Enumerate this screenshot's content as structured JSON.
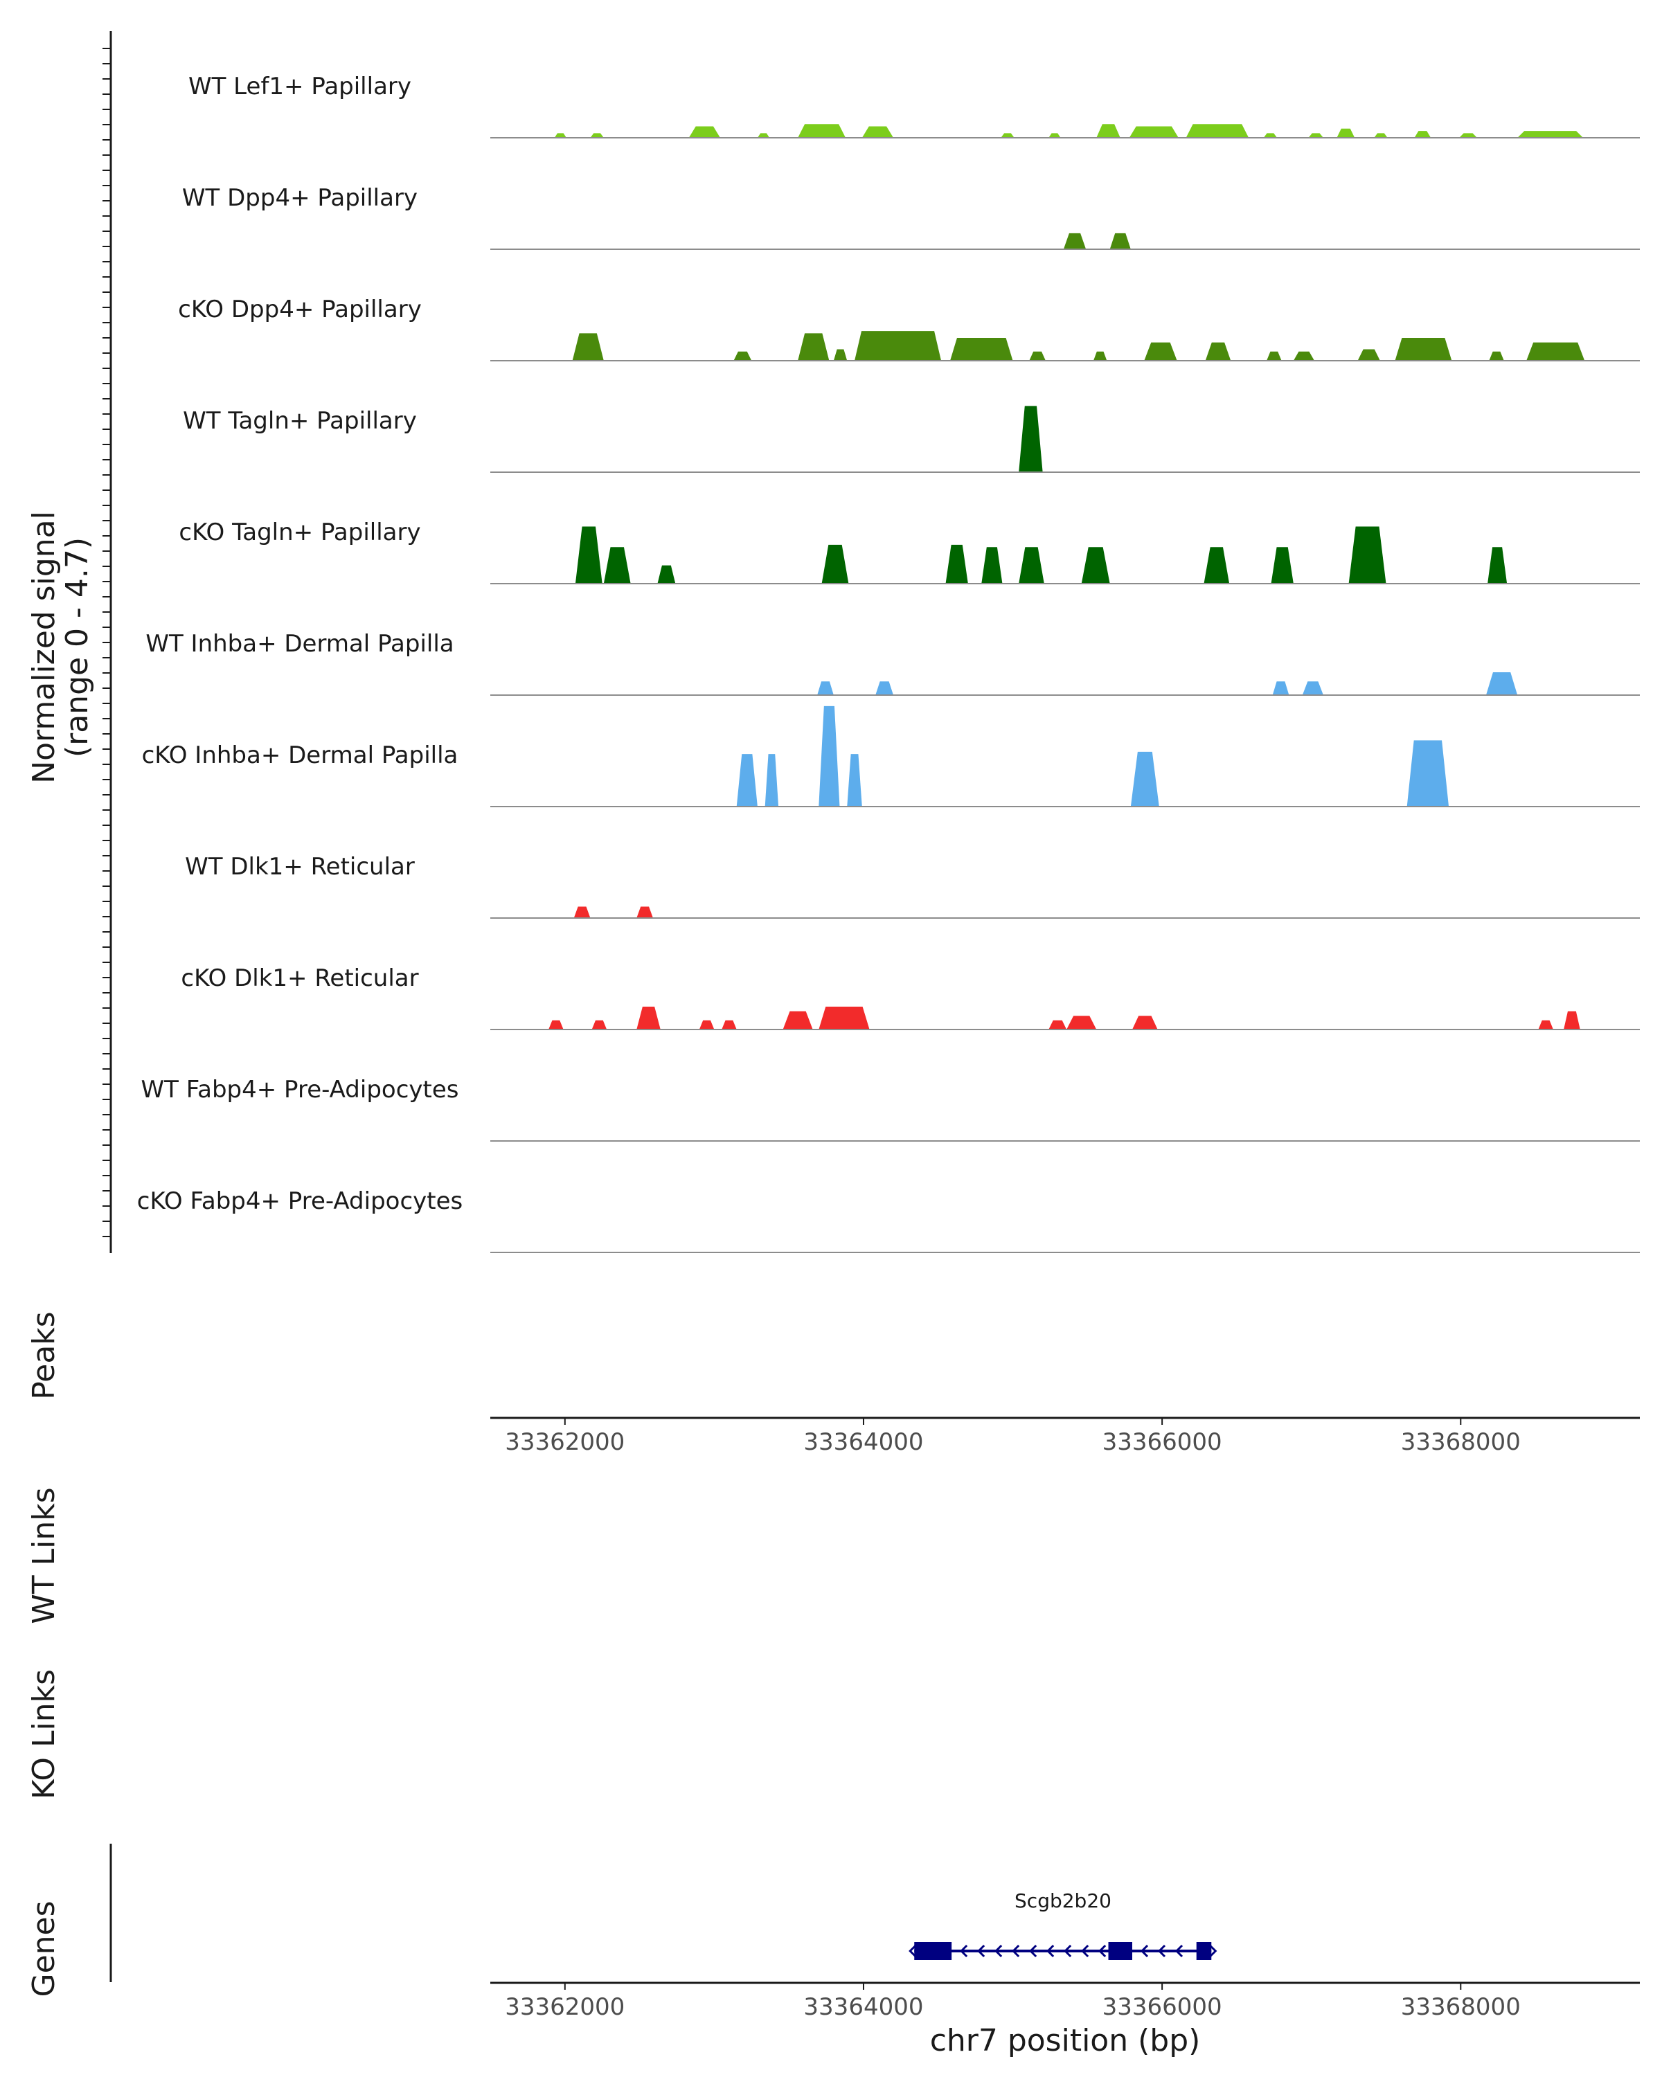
{
  "chart_data": {
    "type": "area",
    "coverage": {
      "ylabel_line1": "Normalized signal",
      "ylabel_line2": "(range 0 - 4.7)",
      "ylim": [
        0,
        4.7
      ],
      "tracks": [
        {
          "name": "WT Lef1+ Papillary",
          "color": "#7CCD1C",
          "peaks": [
            {
              "start": 33361930,
              "end": 33362010,
              "h": 0.2
            },
            {
              "start": 33362170,
              "end": 33362260,
              "h": 0.2
            },
            {
              "start": 33362830,
              "end": 33363040,
              "h": 0.5
            },
            {
              "start": 33363290,
              "end": 33363370,
              "h": 0.2
            },
            {
              "start": 33363560,
              "end": 33363880,
              "h": 0.6
            },
            {
              "start": 33363990,
              "end": 33364200,
              "h": 0.5
            },
            {
              "start": 33364920,
              "end": 33365010,
              "h": 0.2
            },
            {
              "start": 33365240,
              "end": 33365320,
              "h": 0.2
            },
            {
              "start": 33365560,
              "end": 33365720,
              "h": 0.6
            },
            {
              "start": 33365780,
              "end": 33366110,
              "h": 0.5
            },
            {
              "start": 33366160,
              "end": 33366580,
              "h": 0.6
            },
            {
              "start": 33366680,
              "end": 33366770,
              "h": 0.2
            },
            {
              "start": 33366980,
              "end": 33367080,
              "h": 0.2
            },
            {
              "start": 33367170,
              "end": 33367290,
              "h": 0.4
            },
            {
              "start": 33367420,
              "end": 33367510,
              "h": 0.2
            },
            {
              "start": 33367690,
              "end": 33367800,
              "h": 0.3
            },
            {
              "start": 33367990,
              "end": 33368110,
              "h": 0.2
            },
            {
              "start": 33368380,
              "end": 33368820,
              "h": 0.3
            }
          ]
        },
        {
          "name": "WT Dpp4+ Papillary",
          "color": "#4A8A0C",
          "peaks": [
            {
              "start": 33365340,
              "end": 33365490,
              "h": 0.7
            },
            {
              "start": 33365650,
              "end": 33365790,
              "h": 0.7
            }
          ]
        },
        {
          "name": "cKO Dpp4+ Papillary",
          "color": "#4A8A0C",
          "peaks": [
            {
              "start": 33362050,
              "end": 33362260,
              "h": 1.2
            },
            {
              "start": 33363130,
              "end": 33363250,
              "h": 0.4
            },
            {
              "start": 33363560,
              "end": 33363770,
              "h": 1.2
            },
            {
              "start": 33363800,
              "end": 33363890,
              "h": 0.5
            },
            {
              "start": 33363940,
              "end": 33364520,
              "h": 1.3
            },
            {
              "start": 33364580,
              "end": 33365000,
              "h": 1.0
            },
            {
              "start": 33365110,
              "end": 33365220,
              "h": 0.4
            },
            {
              "start": 33365540,
              "end": 33365630,
              "h": 0.4
            },
            {
              "start": 33365880,
              "end": 33366100,
              "h": 0.8
            },
            {
              "start": 33366290,
              "end": 33366460,
              "h": 0.8
            },
            {
              "start": 33366700,
              "end": 33366800,
              "h": 0.4
            },
            {
              "start": 33366880,
              "end": 33367020,
              "h": 0.4
            },
            {
              "start": 33367310,
              "end": 33367460,
              "h": 0.5
            },
            {
              "start": 33367560,
              "end": 33367940,
              "h": 1.0
            },
            {
              "start": 33368190,
              "end": 33368290,
              "h": 0.4
            },
            {
              "start": 33368440,
              "end": 33368830,
              "h": 0.8
            }
          ]
        },
        {
          "name": "WT Tagln+ Papillary",
          "color": "#006400",
          "peaks": [
            {
              "start": 33365040,
              "end": 33365200,
              "h": 2.9
            }
          ]
        },
        {
          "name": "cKO Tagln+ Papillary",
          "color": "#006400",
          "peaks": [
            {
              "start": 33362070,
              "end": 33362250,
              "h": 2.5
            },
            {
              "start": 33362260,
              "end": 33362440,
              "h": 1.6
            },
            {
              "start": 33362620,
              "end": 33362740,
              "h": 0.8
            },
            {
              "start": 33363720,
              "end": 33363900,
              "h": 1.7
            },
            {
              "start": 33364550,
              "end": 33364700,
              "h": 1.7
            },
            {
              "start": 33364790,
              "end": 33364930,
              "h": 1.6
            },
            {
              "start": 33365040,
              "end": 33365210,
              "h": 1.6
            },
            {
              "start": 33365460,
              "end": 33365650,
              "h": 1.6
            },
            {
              "start": 33366280,
              "end": 33366450,
              "h": 1.6
            },
            {
              "start": 33366730,
              "end": 33366880,
              "h": 1.6
            },
            {
              "start": 33367250,
              "end": 33367500,
              "h": 2.5
            },
            {
              "start": 33368180,
              "end": 33368310,
              "h": 1.6
            }
          ]
        },
        {
          "name": "WT Inhba+ Dermal Papilla",
          "color": "#5DADEC",
          "peaks": [
            {
              "start": 33363690,
              "end": 33363800,
              "h": 0.6
            },
            {
              "start": 33364080,
              "end": 33364200,
              "h": 0.6
            },
            {
              "start": 33366740,
              "end": 33366850,
              "h": 0.6
            },
            {
              "start": 33366940,
              "end": 33367080,
              "h": 0.6
            },
            {
              "start": 33368170,
              "end": 33368380,
              "h": 1.0
            }
          ]
        },
        {
          "name": "cKO Inhba+ Dermal Papilla",
          "color": "#5DADEC",
          "peaks": [
            {
              "start": 33363150,
              "end": 33363290,
              "h": 2.3
            },
            {
              "start": 33363340,
              "end": 33363430,
              "h": 2.3
            },
            {
              "start": 33363700,
              "end": 33363840,
              "h": 4.4
            },
            {
              "start": 33363890,
              "end": 33363990,
              "h": 2.3
            },
            {
              "start": 33365790,
              "end": 33365980,
              "h": 2.4
            },
            {
              "start": 33367640,
              "end": 33367920,
              "h": 2.9
            }
          ]
        },
        {
          "name": "WT Dlk1+ Reticular",
          "color": "#F22B2B",
          "peaks": [
            {
              "start": 33362060,
              "end": 33362170,
              "h": 0.5
            },
            {
              "start": 33362480,
              "end": 33362590,
              "h": 0.5
            }
          ]
        },
        {
          "name": "cKO Dlk1+ Reticular",
          "color": "#F22B2B",
          "peaks": [
            {
              "start": 33361890,
              "end": 33361990,
              "h": 0.4
            },
            {
              "start": 33362180,
              "end": 33362280,
              "h": 0.4
            },
            {
              "start": 33362480,
              "end": 33362640,
              "h": 1.0
            },
            {
              "start": 33362900,
              "end": 33363000,
              "h": 0.4
            },
            {
              "start": 33363050,
              "end": 33363150,
              "h": 0.4
            },
            {
              "start": 33363460,
              "end": 33363660,
              "h": 0.8
            },
            {
              "start": 33363700,
              "end": 33364040,
              "h": 1.0
            },
            {
              "start": 33365240,
              "end": 33365360,
              "h": 0.4
            },
            {
              "start": 33365360,
              "end": 33365560,
              "h": 0.6
            },
            {
              "start": 33365800,
              "end": 33365970,
              "h": 0.6
            },
            {
              "start": 33368520,
              "end": 33368620,
              "h": 0.4
            },
            {
              "start": 33368690,
              "end": 33368800,
              "h": 0.8
            }
          ]
        },
        {
          "name": "WT Fabp4+ Pre-Adipocytes",
          "color": "#F1A340",
          "peaks": []
        },
        {
          "name": "cKO Fabp4+ Pre-Adipocytes",
          "color": "#F1A340",
          "peaks": []
        }
      ]
    },
    "xlim": [
      33361500,
      33369200
    ],
    "x_ticks": [
      33362000,
      33364000,
      33366000,
      33368000
    ],
    "x_tick_labels": [
      "33362000",
      "33364000",
      "33366000",
      "33368000"
    ],
    "xlabel": "chr7 position (bp)",
    "panels": {
      "peaks": "Peaks",
      "wt_links": "WT Links",
      "ko_links": "KO Links",
      "genes": "Genes"
    },
    "gene": {
      "name": "Scgb2b20",
      "start": 33364340,
      "end": 33366330,
      "strand": "-",
      "exons": [
        [
          33364340,
          33364590
        ],
        [
          33365640,
          33365800
        ],
        [
          33366230,
          33366330
        ]
      ],
      "color": "#000080"
    }
  }
}
